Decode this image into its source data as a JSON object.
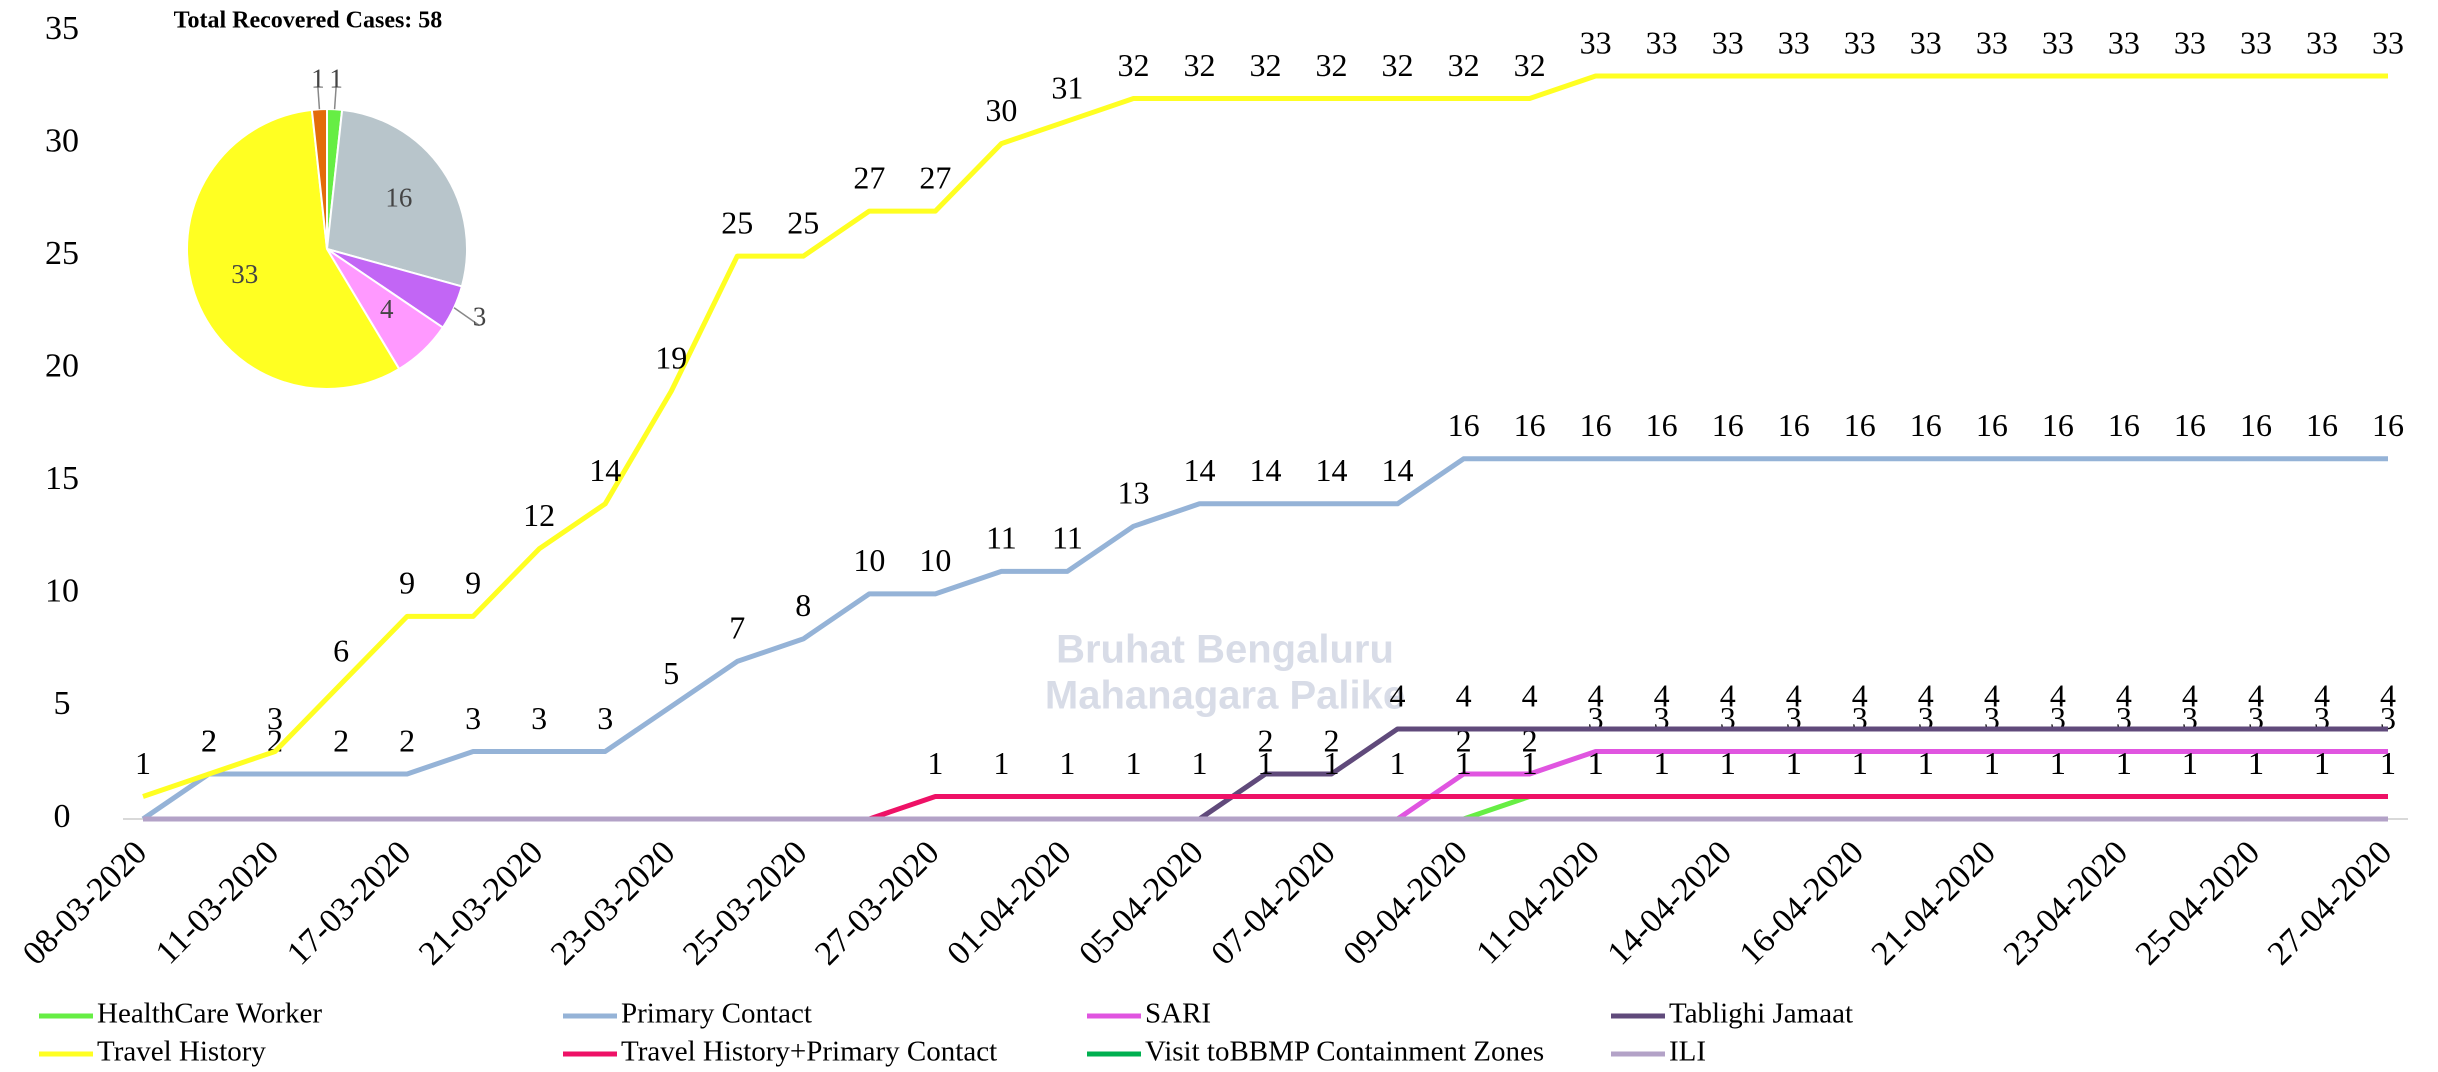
{
  "chart_data": [
    {
      "type": "line",
      "watermark": [
        "Bruhat Bengaluru",
        "Mahanagara Palike"
      ],
      "categories": [
        "08-03-2020",
        null,
        "11-03-2020",
        null,
        "17-03-2020",
        null,
        "21-03-2020",
        null,
        "23-03-2020",
        null,
        "25-03-2020",
        null,
        "27-03-2020",
        null,
        "01-04-2020",
        null,
        "05-04-2020",
        null,
        "07-04-2020",
        null,
        "09-04-2020",
        null,
        "11-04-2020",
        null,
        "14-04-2020",
        null,
        "16-04-2020",
        null,
        "21-04-2020",
        null,
        "23-04-2020",
        null,
        "25-04-2020",
        null,
        "27-04-2020"
      ],
      "ylim": [
        0,
        35
      ],
      "yticks": [
        0,
        5,
        10,
        15,
        20,
        25,
        30,
        35
      ],
      "grid": false,
      "series": [
        {
          "name": "HealthCare Worker",
          "color": "#66ee44",
          "data_labels": true,
          "values": [
            null,
            null,
            null,
            null,
            null,
            null,
            null,
            null,
            null,
            null,
            null,
            null,
            null,
            null,
            null,
            null,
            null,
            null,
            null,
            null,
            0,
            1,
            1,
            1,
            1,
            1,
            1,
            1,
            1,
            1,
            1,
            1,
            1,
            1,
            1
          ]
        },
        {
          "name": "Primary Contact",
          "color": "#95b3d7",
          "data_labels": true,
          "values": [
            0,
            2,
            2,
            2,
            2,
            3,
            3,
            3,
            5,
            7,
            8,
            10,
            10,
            11,
            11,
            13,
            14,
            14,
            14,
            14,
            16,
            16,
            16,
            16,
            16,
            16,
            16,
            16,
            16,
            16,
            16,
            16,
            16,
            16,
            16
          ]
        },
        {
          "name": "SARI",
          "color": "#e055e0",
          "data_labels": true,
          "values": [
            null,
            null,
            null,
            null,
            null,
            null,
            null,
            null,
            null,
            null,
            null,
            null,
            null,
            null,
            null,
            null,
            null,
            null,
            null,
            0,
            2,
            2,
            3,
            3,
            3,
            3,
            3,
            3,
            3,
            3,
            3,
            3,
            3,
            3,
            3
          ]
        },
        {
          "name": "Tablighi Jamaat",
          "color": "#604a7b",
          "data_labels": true,
          "values": [
            null,
            null,
            null,
            null,
            null,
            null,
            null,
            null,
            null,
            null,
            null,
            null,
            null,
            null,
            null,
            null,
            0,
            2,
            2,
            4,
            4,
            4,
            4,
            4,
            4,
            4,
            4,
            4,
            4,
            4,
            4,
            4,
            4,
            4,
            4
          ]
        },
        {
          "name": "Travel History",
          "color": "#ffff22",
          "data_labels": true,
          "values": [
            1,
            2,
            3,
            6,
            9,
            9,
            12,
            14,
            19,
            25,
            25,
            27,
            27,
            30,
            31,
            32,
            32,
            32,
            32,
            32,
            32,
            32,
            33,
            33,
            33,
            33,
            33,
            33,
            33,
            33,
            33,
            33,
            33,
            33,
            33
          ]
        },
        {
          "name": "Travel History+Primary Contact",
          "color": "#ee1166",
          "data_labels": true,
          "values": [
            null,
            null,
            null,
            null,
            null,
            null,
            null,
            null,
            null,
            null,
            null,
            0,
            1,
            1,
            1,
            1,
            1,
            1,
            1,
            1,
            1,
            1,
            1,
            1,
            1,
            1,
            1,
            1,
            1,
            1,
            1,
            1,
            1,
            1,
            1
          ]
        },
        {
          "name": "Visit toBBMP Containment Zones",
          "color": "#00b050",
          "data_labels": false,
          "values": [
            0,
            0,
            0,
            0,
            0,
            0,
            0,
            0,
            0,
            0,
            0,
            0,
            0,
            0,
            0,
            0,
            0,
            0,
            0,
            0,
            0,
            0,
            0,
            0,
            0,
            0,
            0,
            0,
            0,
            0,
            0,
            0,
            0,
            0,
            0
          ]
        },
        {
          "name": "ILI",
          "color": "#b3a2c7",
          "data_labels": false,
          "values": [
            0,
            0,
            0,
            0,
            0,
            0,
            0,
            0,
            0,
            0,
            0,
            0,
            0,
            0,
            0,
            0,
            0,
            0,
            0,
            0,
            0,
            0,
            0,
            0,
            0,
            0,
            0,
            0,
            0,
            0,
            0,
            0,
            0,
            0,
            0
          ]
        }
      ]
    },
    {
      "type": "pie",
      "title": "Total Recovered Cases: 58",
      "values": [
        1,
        16,
        3,
        4,
        33,
        1
      ],
      "colors": [
        "#66ee44",
        "#b8c5cb",
        "#c266f5",
        "#ff99ff",
        "#ffff22",
        "#e36c0a"
      ]
    }
  ]
}
